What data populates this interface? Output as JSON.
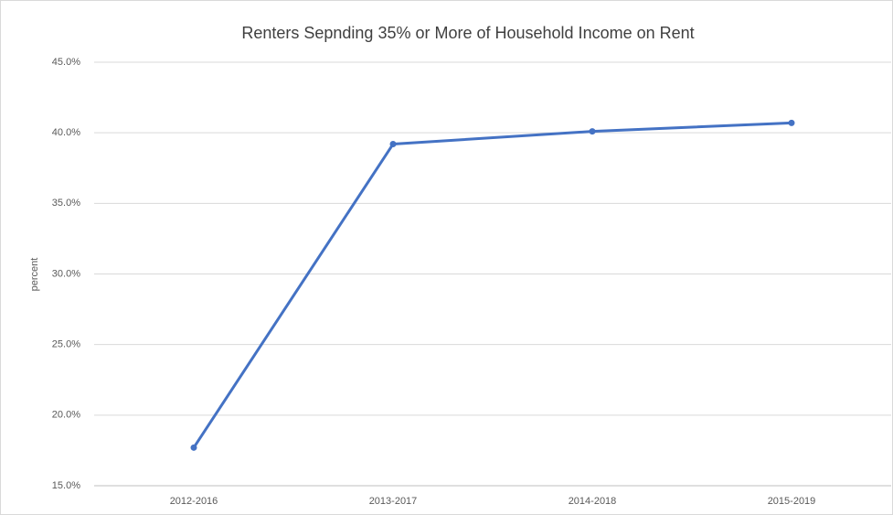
{
  "chart_data": {
    "type": "line",
    "title": "Renters Sepnding 35% or More of Household Income on Rent",
    "y_label": "percent",
    "categories": [
      "2012-2016",
      "2013-2017",
      "2014-2018",
      "2015-2019"
    ],
    "series": [
      {
        "name": "percent",
        "color": "#4472c4",
        "values": [
          17.7,
          39.2,
          40.1,
          40.7
        ]
      }
    ],
    "ylim": [
      15,
      45
    ],
    "yticks": [
      {
        "value": 15,
        "label": "15.0%"
      },
      {
        "value": 20,
        "label": "20.0%"
      },
      {
        "value": 25,
        "label": "25.0%"
      },
      {
        "value": 30,
        "label": "30.0%"
      },
      {
        "value": 35,
        "label": "35.0%"
      },
      {
        "value": 40,
        "label": "40.0%"
      },
      {
        "value": 45,
        "label": "45.0%"
      }
    ],
    "grid": true
  }
}
